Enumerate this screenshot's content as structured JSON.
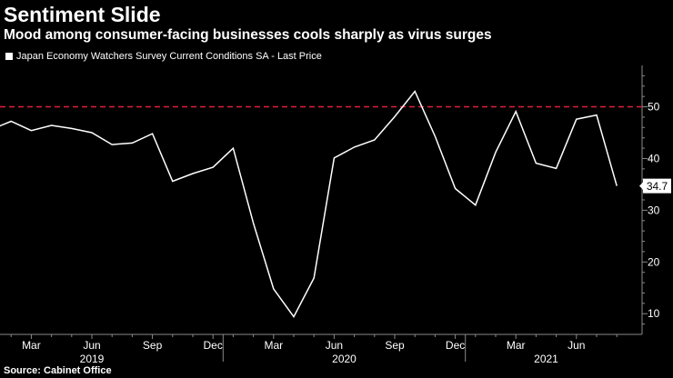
{
  "title": "Sentiment Slide",
  "subtitle": "Mood among consumer-facing businesses cools sharply as virus surges",
  "source": "Source: Cabinet Office",
  "colors": {
    "background": "#000000",
    "line": "#ffffff",
    "reference": "#e0203a",
    "grid": "#8a8a8a"
  },
  "chart_data": {
    "type": "line",
    "title": "Sentiment Slide",
    "subtitle": "Mood among consumer-facing businesses cools sharply as virus surges",
    "legend": "Japan Economy Watchers Survey Current Conditions SA - Last Price",
    "legend_position": "top-left",
    "x": [
      "2019-01",
      "2019-02",
      "2019-03",
      "2019-04",
      "2019-05",
      "2019-06",
      "2019-07",
      "2019-08",
      "2019-09",
      "2019-10",
      "2019-11",
      "2019-12",
      "2020-01",
      "2020-02",
      "2020-03",
      "2020-04",
      "2020-05",
      "2020-06",
      "2020-07",
      "2020-08",
      "2020-09",
      "2020-10",
      "2020-11",
      "2020-12",
      "2021-01",
      "2021-02",
      "2021-03",
      "2021-04",
      "2021-05",
      "2021-06",
      "2021-07",
      "2021-08"
    ],
    "series": [
      {
        "name": "Japan Economy Watchers Survey Current Conditions SA - Last Price",
        "values": [
          45.6,
          47.2,
          45.4,
          46.4,
          45.8,
          45.0,
          42.7,
          43.0,
          44.8,
          35.6,
          37.1,
          38.3,
          42.0,
          27.5,
          14.8,
          9.4,
          16.9,
          40.1,
          42.2,
          43.6,
          48.1,
          53.0,
          44.3,
          34.2,
          31.0,
          41.2,
          49.1,
          39.1,
          38.1,
          47.6,
          48.4,
          34.7
        ]
      }
    ],
    "last_value_label": "34.7",
    "reference_line": {
      "value": 50,
      "style": "dashed"
    },
    "ylim": [
      6,
      58
    ],
    "yticks": [
      "10",
      "20",
      "30",
      "40",
      "50"
    ],
    "xtick_labels": [
      {
        "index": 2,
        "label": "Mar"
      },
      {
        "index": 5,
        "label": "Jun"
      },
      {
        "index": 8,
        "label": "Sep"
      },
      {
        "index": 11,
        "label": "Dec"
      },
      {
        "index": 14,
        "label": "Mar"
      },
      {
        "index": 17,
        "label": "Jun"
      },
      {
        "index": 20,
        "label": "Sep"
      },
      {
        "index": 23,
        "label": "Dec"
      },
      {
        "index": 26,
        "label": "Mar"
      },
      {
        "index": 29,
        "label": "Jun"
      }
    ],
    "year_labels": [
      "2019",
      "2020",
      "2021"
    ],
    "xlabel": "",
    "ylabel": "",
    "grid": false
  }
}
